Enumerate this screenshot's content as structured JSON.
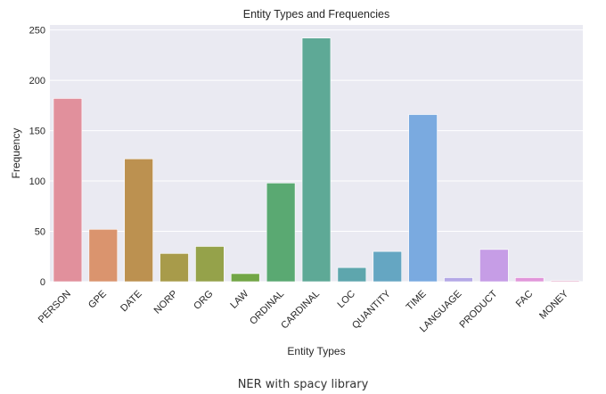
{
  "chart_data": {
    "type": "bar",
    "title": "Entity Types and Frequencies",
    "xlabel": "Entity Types",
    "ylabel": "Frequency",
    "ylim": [
      0,
      255
    ],
    "yticks": [
      0,
      50,
      100,
      150,
      200,
      250
    ],
    "grid": "horizontal",
    "background": "#eaeaf2",
    "categories": [
      "PERSON",
      "GPE",
      "DATE",
      "NORP",
      "ORG",
      "LAW",
      "ORDINAL",
      "CARDINAL",
      "LOC",
      "QUANTITY",
      "TIME",
      "LANGUAGE",
      "PRODUCT",
      "FAC",
      "MONEY"
    ],
    "values": [
      182,
      52,
      122,
      28,
      35,
      8,
      98,
      242,
      14,
      30,
      166,
      4,
      32,
      4,
      1
    ],
    "colors": [
      "#e1909c",
      "#da946e",
      "#bc9150",
      "#a89b4a",
      "#95a24a",
      "#72a646",
      "#5aa972",
      "#5ea996",
      "#5ea6ad",
      "#65a6c2",
      "#7aaae0",
      "#b4a8e6",
      "#c69de6",
      "#e196da",
      "#e19abe"
    ]
  },
  "caption": "NER with spacy library"
}
